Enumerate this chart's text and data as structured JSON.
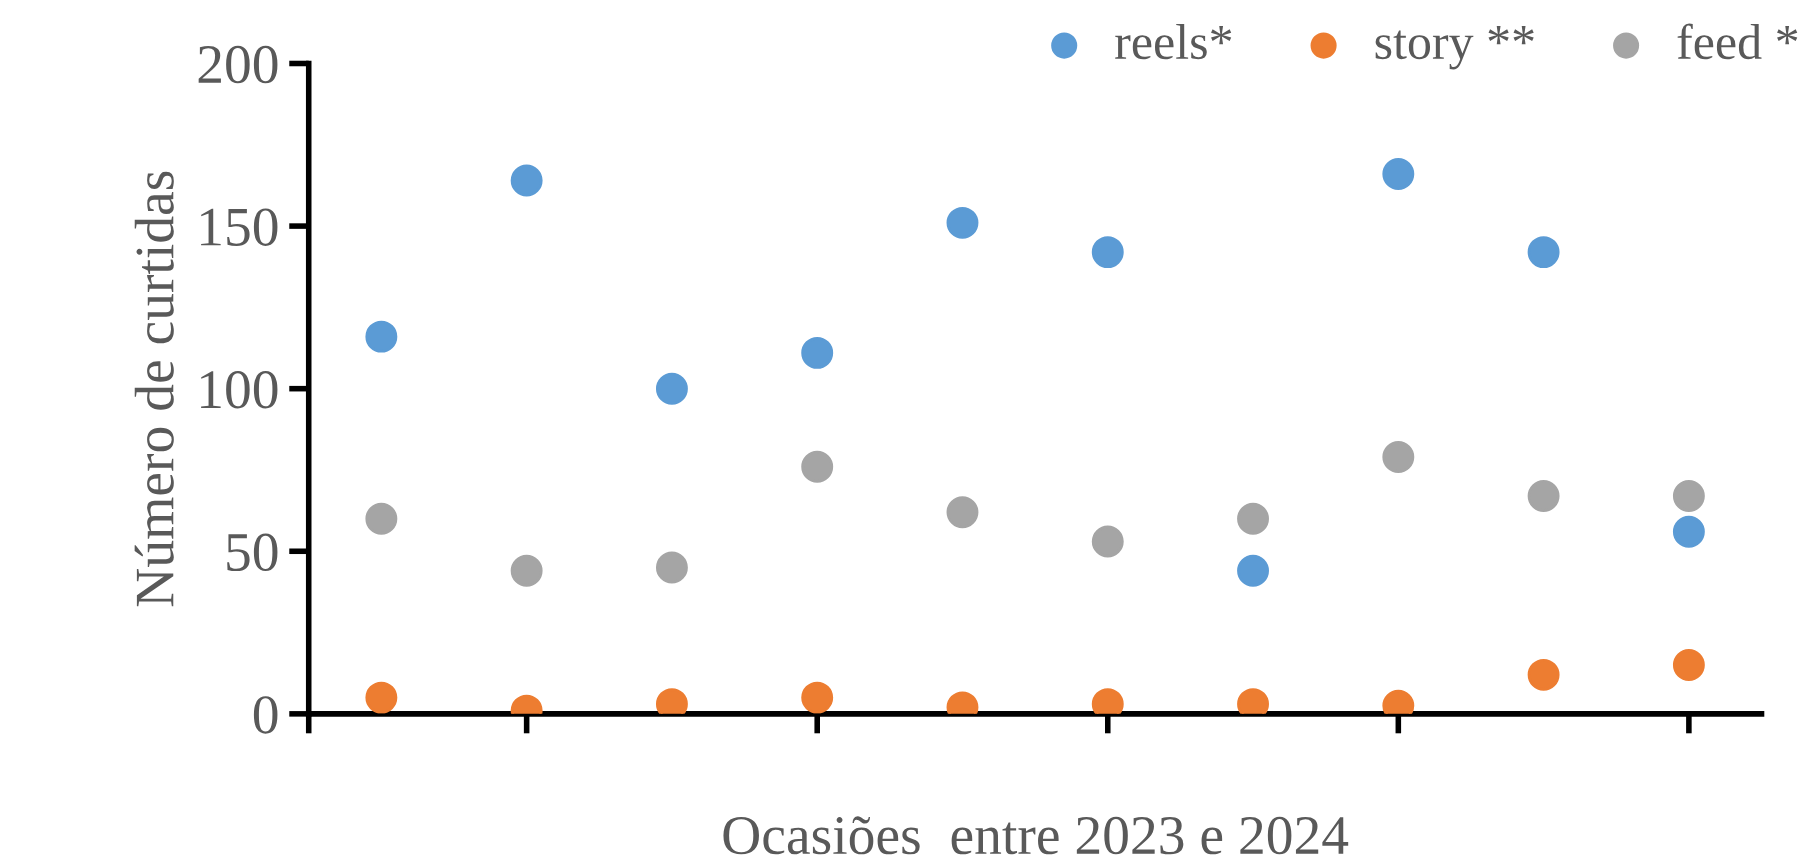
{
  "chart_data": {
    "type": "scatter",
    "xlabel": "Ocasiões  entre 2023 e 2024",
    "ylabel": "Número de curtidas",
    "categories": [
      null,
      null,
      null,
      null,
      null,
      null,
      null,
      null,
      null,
      null
    ],
    "ylim": [
      0,
      200
    ],
    "yticks": [
      0,
      50,
      100,
      150,
      200
    ],
    "tick_labels": "y",
    "grid": false,
    "legend": "top right",
    "marker": "circle",
    "series": [
      {
        "name": "reels*",
        "color": "#5b9bd5",
        "values": [
          116,
          164,
          100,
          111,
          151,
          142,
          44,
          166,
          142,
          56
        ]
      },
      {
        "name": "story **",
        "color": "#ed7d31",
        "values": [
          5,
          1,
          3,
          5,
          2,
          3,
          3,
          2.5,
          12,
          15
        ]
      },
      {
        "name": "feed *",
        "color": "#a5a5a5",
        "values": [
          60,
          44,
          45,
          76,
          62,
          53,
          60,
          79,
          67,
          67
        ]
      }
    ]
  }
}
